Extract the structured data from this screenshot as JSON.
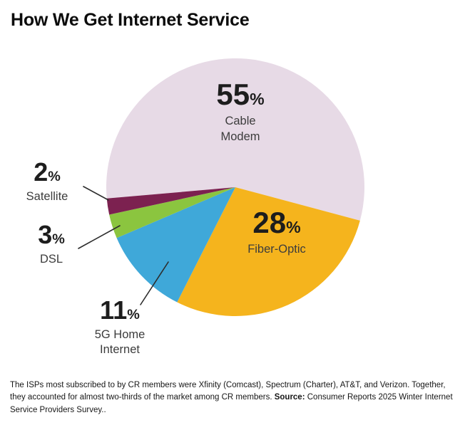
{
  "title": "How We Get Internet Service",
  "percent_sign": "%",
  "chart_data": {
    "type": "pie",
    "title": "How We Get Internet Service",
    "unit": "%",
    "categories": [
      "Cable Modem",
      "Fiber-Optic",
      "5G Home Internet",
      "DSL",
      "Satellite"
    ],
    "values": [
      55,
      28,
      11,
      3,
      2
    ],
    "slices": [
      {
        "label": "Cable Modem",
        "value": 55,
        "color": "#e7dae6",
        "label_position": "inside"
      },
      {
        "label": "Fiber-Optic",
        "value": 28,
        "color": "#f5b41d",
        "label_position": "inside"
      },
      {
        "label": "5G Home Internet",
        "value": 11,
        "color": "#3fa8d9",
        "label_position": "outside-left"
      },
      {
        "label": "DSL",
        "value": 3,
        "color": "#8bc53f",
        "label_position": "outside-left"
      },
      {
        "label": "Satellite",
        "value": 2,
        "color": "#7c2150",
        "label_position": "outside-left"
      }
    ],
    "start_angle_deg": -95,
    "direction": "clockwise",
    "legend": "none",
    "label_style": "percentage with category name; small slices labeled outside with leader lines"
  },
  "footnote": {
    "text_before": "The ISPs most subscribed to by CR members were Xfinity (Comcast), Spectrum (Charter), AT&T, and Verizon. Together, they accounted for almost two-thirds of the market among CR members. ",
    "source_label": "Source:",
    "text_after": " Consumer Reports 2025 Winter Internet Service Providers Survey.."
  }
}
